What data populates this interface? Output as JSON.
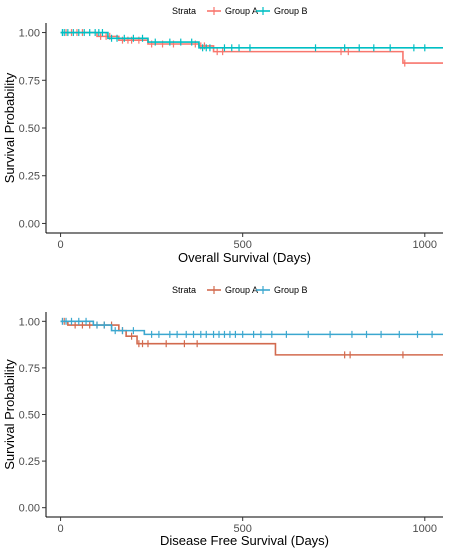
{
  "chart_data": [
    {
      "type": "line",
      "step": true,
      "xlabel": "Overall Survival (Days)",
      "ylabel": "Survival Probability",
      "xlim": [
        -40,
        1050
      ],
      "ylim": [
        -0.05,
        1.05
      ],
      "x_ticks": [
        0,
        500,
        1000
      ],
      "y_ticks": [
        "0.00",
        "0.25",
        "0.50",
        "0.75",
        "1.00"
      ],
      "grid": false,
      "legend": {
        "title": "Strata",
        "position": "top"
      },
      "series": [
        {
          "name": "Group A",
          "color": "#f8766d",
          "steps": [
            [
              0,
              1.0
            ],
            [
              100,
              0.98
            ],
            [
              160,
              0.96
            ],
            [
              240,
              0.94
            ],
            [
              380,
              0.93
            ],
            [
              420,
              0.9
            ],
            [
              940,
              0.84
            ],
            [
              1050,
              0.84
            ]
          ],
          "censored": [
            [
              15,
              1.0
            ],
            [
              30,
              1.0
            ],
            [
              45,
              1.0
            ],
            [
              60,
              1.0
            ],
            [
              110,
              0.98
            ],
            [
              125,
              0.98
            ],
            [
              135,
              0.98
            ],
            [
              170,
              0.96
            ],
            [
              185,
              0.96
            ],
            [
              195,
              0.96
            ],
            [
              215,
              0.96
            ],
            [
              250,
              0.94
            ],
            [
              280,
              0.94
            ],
            [
              310,
              0.94
            ],
            [
              370,
              0.94
            ],
            [
              385,
              0.93
            ],
            [
              395,
              0.93
            ],
            [
              430,
              0.9
            ],
            [
              445,
              0.9
            ],
            [
              770,
              0.9
            ],
            [
              790,
              0.9
            ],
            [
              945,
              0.84
            ]
          ]
        },
        {
          "name": "Group B",
          "color": "#00bfc4",
          "steps": [
            [
              0,
              1.0
            ],
            [
              130,
              0.97
            ],
            [
              240,
              0.95
            ],
            [
              380,
              0.92
            ],
            [
              1050,
              0.92
            ]
          ],
          "censored": [
            [
              5,
              1.0
            ],
            [
              10,
              1.0
            ],
            [
              20,
              1.0
            ],
            [
              35,
              1.0
            ],
            [
              50,
              1.0
            ],
            [
              65,
              1.0
            ],
            [
              80,
              1.0
            ],
            [
              95,
              1.0
            ],
            [
              105,
              1.0
            ],
            [
              115,
              1.0
            ],
            [
              140,
              0.97
            ],
            [
              155,
              0.97
            ],
            [
              175,
              0.97
            ],
            [
              200,
              0.97
            ],
            [
              225,
              0.97
            ],
            [
              260,
              0.95
            ],
            [
              300,
              0.95
            ],
            [
              330,
              0.95
            ],
            [
              360,
              0.95
            ],
            [
              390,
              0.92
            ],
            [
              400,
              0.92
            ],
            [
              410,
              0.92
            ],
            [
              450,
              0.92
            ],
            [
              470,
              0.92
            ],
            [
              490,
              0.92
            ],
            [
              520,
              0.92
            ],
            [
              700,
              0.92
            ],
            [
              780,
              0.92
            ],
            [
              820,
              0.92
            ],
            [
              860,
              0.92
            ],
            [
              905,
              0.92
            ],
            [
              970,
              0.92
            ],
            [
              1000,
              0.92
            ]
          ]
        }
      ]
    },
    {
      "type": "line",
      "step": true,
      "xlabel": "Disease Free Survival (Days)",
      "ylabel": "Survival Probability",
      "xlim": [
        -40,
        1050
      ],
      "ylim": [
        -0.05,
        1.05
      ],
      "x_ticks": [
        0,
        500,
        1000
      ],
      "y_ticks": [
        "0.00",
        "0.25",
        "0.50",
        "0.75",
        "1.00"
      ],
      "grid": false,
      "legend": {
        "title": "Strata",
        "position": "top"
      },
      "series": [
        {
          "name": "Group A",
          "color": "#d26a4e",
          "steps": [
            [
              0,
              1.0
            ],
            [
              20,
              0.98
            ],
            [
              160,
              0.95
            ],
            [
              180,
              0.92
            ],
            [
              210,
              0.88
            ],
            [
              590,
              0.82
            ],
            [
              1050,
              0.82
            ]
          ],
          "censored": [
            [
              10,
              1.0
            ],
            [
              40,
              0.98
            ],
            [
              60,
              0.98
            ],
            [
              80,
              0.98
            ],
            [
              100,
              0.98
            ],
            [
              120,
              0.98
            ],
            [
              140,
              0.98
            ],
            [
              170,
              0.95
            ],
            [
              195,
              0.92
            ],
            [
              215,
              0.88
            ],
            [
              225,
              0.88
            ],
            [
              240,
              0.88
            ],
            [
              290,
              0.88
            ],
            [
              340,
              0.88
            ],
            [
              375,
              0.88
            ],
            [
              780,
              0.82
            ],
            [
              795,
              0.82
            ],
            [
              940,
              0.82
            ]
          ]
        },
        {
          "name": "Group B",
          "color": "#3ba7cf",
          "steps": [
            [
              0,
              1.0
            ],
            [
              90,
              0.98
            ],
            [
              140,
              0.95
            ],
            [
              230,
              0.93
            ],
            [
              1050,
              0.93
            ]
          ],
          "censored": [
            [
              5,
              1.0
            ],
            [
              15,
              1.0
            ],
            [
              30,
              1.0
            ],
            [
              50,
              1.0
            ],
            [
              70,
              1.0
            ],
            [
              100,
              0.98
            ],
            [
              120,
              0.98
            ],
            [
              150,
              0.95
            ],
            [
              170,
              0.95
            ],
            [
              200,
              0.95
            ],
            [
              250,
              0.93
            ],
            [
              270,
              0.93
            ],
            [
              300,
              0.93
            ],
            [
              320,
              0.93
            ],
            [
              345,
              0.93
            ],
            [
              365,
              0.93
            ],
            [
              385,
              0.93
            ],
            [
              400,
              0.93
            ],
            [
              420,
              0.93
            ],
            [
              435,
              0.93
            ],
            [
              450,
              0.93
            ],
            [
              465,
              0.93
            ],
            [
              480,
              0.93
            ],
            [
              500,
              0.93
            ],
            [
              530,
              0.93
            ],
            [
              550,
              0.93
            ],
            [
              580,
              0.93
            ],
            [
              620,
              0.93
            ],
            [
              680,
              0.93
            ],
            [
              740,
              0.93
            ],
            [
              800,
              0.93
            ],
            [
              840,
              0.93
            ],
            [
              880,
              0.93
            ],
            [
              930,
              0.93
            ],
            [
              980,
              0.93
            ],
            [
              1020,
              0.93
            ]
          ]
        }
      ]
    }
  ]
}
